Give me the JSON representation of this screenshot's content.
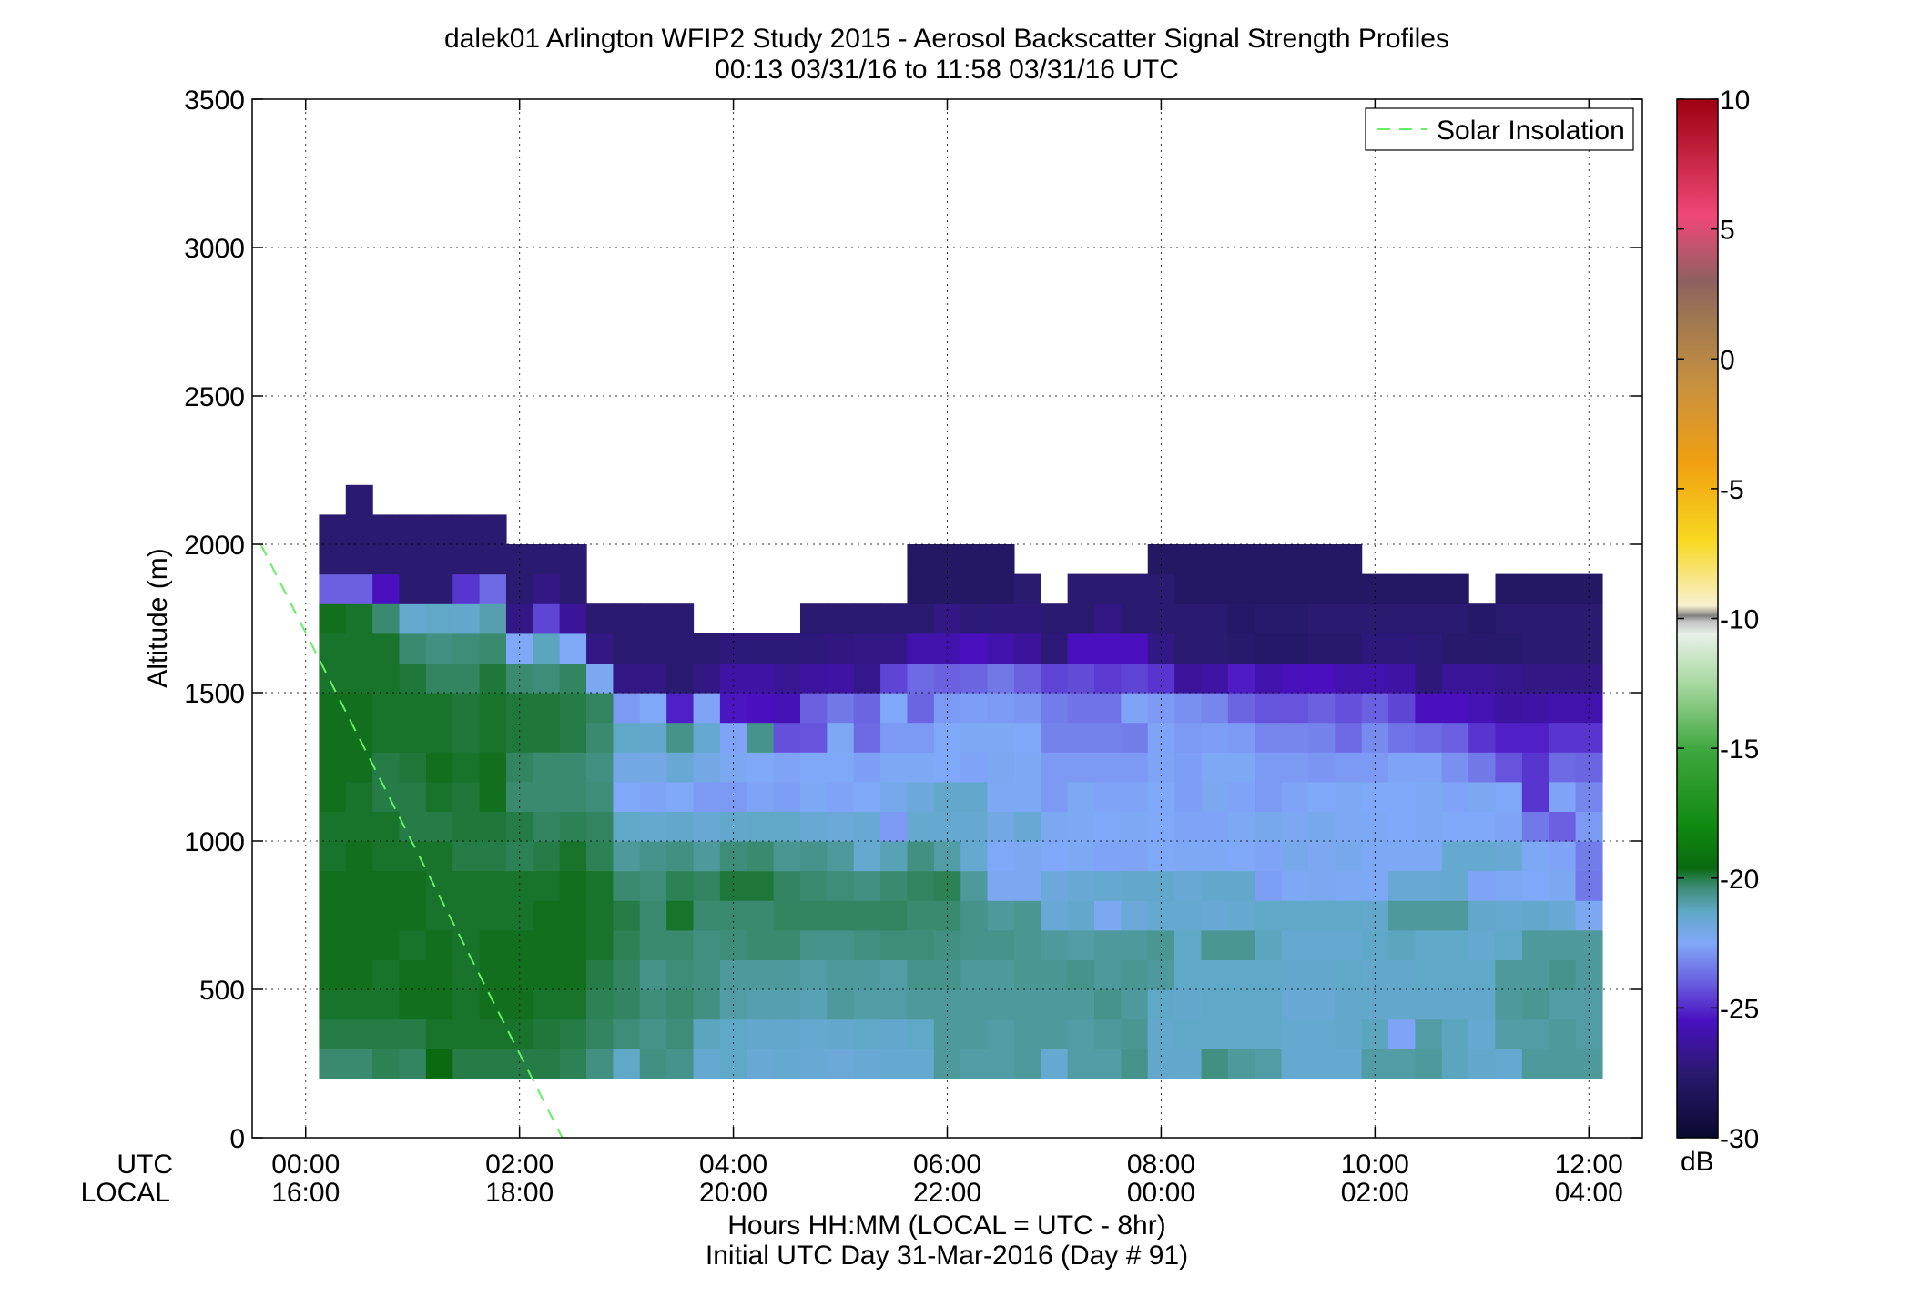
{
  "chart_data": {
    "type": "heatmap",
    "title": "dalek01 Arlington WFIP2 Study 2015 - Aerosol Backscatter Signal Strength Profiles",
    "subtitle": "00:13 03/31/16 to 11:58 03/31/16  UTC",
    "ylabel": "Altitude (m)",
    "xlabel": "Hours HH:MM  (LOCAL = UTC - 8hr)",
    "xlabel2": "Initial UTC Day 31-Mar-2016 (Day # 91)",
    "row_label_utc": "UTC",
    "row_label_local": "LOCAL",
    "xlim_hours": [
      -0.5,
      12.5
    ],
    "ylim": [
      0,
      3500
    ],
    "x_ticks": [
      {
        "value": 0,
        "utc": "00:00",
        "local": "16:00"
      },
      {
        "value": 2,
        "utc": "02:00",
        "local": "18:00"
      },
      {
        "value": 4,
        "utc": "04:00",
        "local": "20:00"
      },
      {
        "value": 6,
        "utc": "06:00",
        "local": "22:00"
      },
      {
        "value": 8,
        "utc": "08:00",
        "local": "00:00"
      },
      {
        "value": 10,
        "utc": "10:00",
        "local": "02:00"
      },
      {
        "value": 12,
        "utc": "12:00",
        "local": "04:00"
      }
    ],
    "y_ticks": [
      0,
      500,
      1000,
      1500,
      2000,
      2500,
      3000,
      3500
    ],
    "grid": true,
    "legend": {
      "position": "top-right",
      "entries": [
        "Solar Insolation"
      ]
    },
    "solar_insolation_line": {
      "x": [
        -0.42,
        2.4
      ],
      "y": [
        2000,
        0
      ],
      "color": "#66ee66"
    },
    "colorbar": {
      "label": "dB",
      "ticks": [
        10,
        5,
        0,
        -5,
        -10,
        -15,
        -20,
        -25,
        -30
      ],
      "range": [
        -30,
        10
      ],
      "colors": [
        {
          "v": -30,
          "c": "#0a0a30"
        },
        {
          "v": -27.5,
          "c": "#2a1a70"
        },
        {
          "v": -25.5,
          "c": "#4a10c0"
        },
        {
          "v": -24,
          "c": "#6a60e0"
        },
        {
          "v": -22.5,
          "c": "#80a8f8"
        },
        {
          "v": -21.3,
          "c": "#60a8c8"
        },
        {
          "v": -20.3,
          "c": "#3a8a70"
        },
        {
          "v": -19.6,
          "c": "#0a6a10"
        },
        {
          "v": -18,
          "c": "#108a10"
        },
        {
          "v": -15,
          "c": "#40a840"
        },
        {
          "v": -12.5,
          "c": "#a8d8a0"
        },
        {
          "v": -10.6,
          "c": "#e8f0e8"
        },
        {
          "v": -10.1,
          "c": "#c0c0c0"
        },
        {
          "v": -9.9,
          "c": "#808080"
        },
        {
          "v": -9.5,
          "c": "#f8f0d0"
        },
        {
          "v": -7,
          "c": "#f8d820"
        },
        {
          "v": -4,
          "c": "#f0a010"
        },
        {
          "v": -1,
          "c": "#c89040"
        },
        {
          "v": 1.5,
          "c": "#a07850"
        },
        {
          "v": 3,
          "c": "#906060"
        },
        {
          "v": 5.5,
          "c": "#f04878"
        },
        {
          "v": 10,
          "c": "#a00010"
        }
      ]
    },
    "time_bins_hours": [
      0.25,
      0.5,
      0.75,
      1.0,
      1.25,
      1.5,
      1.75,
      2.0,
      2.25,
      2.5,
      2.75,
      3.0,
      3.25,
      3.5,
      3.75,
      4.0,
      4.25,
      4.5,
      4.75,
      5.0,
      5.25,
      5.5,
      5.75,
      6.0,
      6.25,
      6.5,
      6.75,
      7.0,
      7.25,
      7.5,
      7.75,
      8.0,
      8.25,
      8.5,
      8.75,
      9.0,
      9.25,
      9.5,
      9.75,
      10.0,
      10.25,
      10.5,
      10.75,
      11.0,
      11.25,
      11.5,
      11.75,
      12.0
    ],
    "altitude_bins_m": [
      200,
      300,
      400,
      500,
      600,
      700,
      800,
      900,
      1000,
      1100,
      1200,
      1300,
      1400,
      1500,
      1600,
      1700,
      1800,
      1900,
      2000,
      2100
    ],
    "columns_db": [
      [
        -20.3,
        -20.0,
        -19.8,
        -19.7,
        -19.7,
        -19.7,
        -19.7,
        -19.8,
        -19.8,
        -19.7,
        -19.7,
        -19.7,
        -19.7,
        -19.8,
        -19.8,
        -19.7,
        -24.0,
        -27.5,
        -27.5
      ],
      [
        -20.3,
        -20.0,
        -19.8,
        -19.7,
        -19.7,
        -19.7,
        -19.7,
        -19.7,
        -19.8,
        -19.8,
        -19.7,
        -19.7,
        -19.7,
        -19.8,
        -19.8,
        -19.8,
        -24.0,
        -27.5,
        -27.5,
        -27.5
      ],
      [
        -20.1,
        -20.0,
        -19.8,
        -19.8,
        -19.7,
        -19.7,
        -19.7,
        -19.8,
        -19.8,
        -20.0,
        -20.0,
        -19.8,
        -19.8,
        -19.8,
        -19.8,
        -20.3,
        -25.5,
        -27.5,
        -27.5
      ],
      [
        -20.2,
        -20.0,
        -19.7,
        -19.7,
        -19.8,
        -19.7,
        -19.7,
        -19.8,
        -20.0,
        -20.0,
        -19.9,
        -19.8,
        -19.8,
        -19.9,
        -20.3,
        -21.5,
        -27.5,
        -27.5,
        -27.5
      ],
      [
        -19.6,
        -19.8,
        -19.7,
        -19.7,
        -19.7,
        -19.8,
        -19.8,
        -19.8,
        -20.0,
        -19.8,
        -19.7,
        -19.8,
        -19.8,
        -20.2,
        -20.5,
        -21.3,
        -27.5,
        -27.5,
        -27.5
      ],
      [
        -20.0,
        -19.8,
        -19.8,
        -19.8,
        -19.8,
        -19.8,
        -19.8,
        -20.0,
        -19.9,
        -19.9,
        -19.8,
        -19.9,
        -19.9,
        -20.2,
        -20.4,
        -21.4,
        -24.8,
        -27.5,
        -27.5
      ],
      [
        -20.0,
        -19.8,
        -19.7,
        -19.7,
        -19.7,
        -19.8,
        -19.8,
        -20.0,
        -19.9,
        -19.7,
        -19.7,
        -19.8,
        -19.8,
        -19.9,
        -20.3,
        -21.0,
        -23.8,
        -27.5,
        -27.5
      ],
      [
        -20.0,
        -19.8,
        -19.7,
        -19.7,
        -19.7,
        -19.8,
        -19.8,
        -20.1,
        -20.0,
        -20.3,
        -20.2,
        -19.9,
        -19.9,
        -20.3,
        -22.5,
        -27.0,
        -27.5,
        -27.5
      ],
      [
        -20.0,
        -19.9,
        -19.8,
        -19.7,
        -19.7,
        -19.7,
        -19.8,
        -20.0,
        -20.2,
        -20.3,
        -20.3,
        -19.9,
        -19.9,
        -20.4,
        -21.2,
        -24.5,
        -27.0,
        -27.5
      ],
      [
        -20.1,
        -20.0,
        -19.8,
        -19.7,
        -19.7,
        -19.7,
        -19.7,
        -19.8,
        -20.1,
        -20.3,
        -20.3,
        -20.0,
        -20.0,
        -20.2,
        -22.5,
        -26.5,
        -27.5,
        -27.5
      ],
      [
        -20.5,
        -20.2,
        -20.1,
        -20.0,
        -19.8,
        -19.8,
        -19.8,
        -20.1,
        -20.2,
        -20.4,
        -20.5,
        -20.3,
        -20.2,
        -22.3,
        -27.0,
        -27.5
      ],
      [
        -21.3,
        -20.4,
        -20.2,
        -20.2,
        -20.1,
        -20.0,
        -20.3,
        -20.8,
        -21.3,
        -22.5,
        -22.0,
        -21.3,
        -22.8,
        -27.0,
        -27.5,
        -27.5
      ],
      [
        -20.5,
        -20.6,
        -20.4,
        -20.6,
        -20.3,
        -20.3,
        -20.4,
        -20.6,
        -21.5,
        -22.6,
        -22.0,
        -21.4,
        -22.5,
        -27.0,
        -27.5,
        -27.5
      ],
      [
        -20.6,
        -20.4,
        -20.3,
        -20.4,
        -20.3,
        -19.8,
        -20.1,
        -20.5,
        -21.4,
        -22.5,
        -21.6,
        -20.6,
        -25.2,
        -27.5,
        -27.5,
        -27.5
      ],
      [
        -21.5,
        -21.2,
        -20.5,
        -20.5,
        -20.5,
        -20.3,
        -20.2,
        -20.8,
        -21.6,
        -22.8,
        -22.0,
        -21.5,
        -22.6,
        -27.0,
        -27.5
      ],
      [
        -21.3,
        -21.3,
        -20.9,
        -20.8,
        -20.4,
        -20.3,
        -19.9,
        -20.4,
        -21.4,
        -22.8,
        -22.3,
        -22.6,
        -25.4,
        -26.2,
        -27.2
      ],
      [
        -21.6,
        -21.4,
        -21.0,
        -20.8,
        -20.3,
        -20.3,
        -19.9,
        -20.3,
        -21.3,
        -22.6,
        -22.5,
        -20.6,
        -25.5,
        -26.2,
        -27.3
      ],
      [
        -21.5,
        -21.4,
        -21.0,
        -20.8,
        -20.3,
        -20.2,
        -20.2,
        -20.7,
        -21.3,
        -22.7,
        -22.6,
        -24.3,
        -25.7,
        -26.6,
        -27.3
      ],
      [
        -21.6,
        -21.5,
        -21.1,
        -20.9,
        -20.6,
        -20.2,
        -20.3,
        -20.6,
        -21.6,
        -22.4,
        -22.5,
        -24.2,
        -24.0,
        -26.3,
        -27.2,
        -27.5
      ],
      [
        -21.7,
        -21.4,
        -20.8,
        -20.8,
        -20.6,
        -20.2,
        -20.4,
        -20.8,
        -21.7,
        -22.6,
        -22.5,
        -22.4,
        -23.5,
        -26.2,
        -27.1,
        -27.5
      ],
      [
        -21.6,
        -21.3,
        -20.9,
        -20.8,
        -20.5,
        -20.2,
        -20.5,
        -21.5,
        -21.6,
        -22.5,
        -22.7,
        -23.8,
        -23.9,
        -26.8,
        -27.0,
        -27.5
      ],
      [
        -21.5,
        -21.4,
        -20.9,
        -20.9,
        -20.4,
        -20.2,
        -20.3,
        -21.1,
        -22.8,
        -22.1,
        -22.4,
        -22.8,
        -22.5,
        -24.5,
        -27.0,
        -27.5
      ],
      [
        -21.5,
        -21.3,
        -20.8,
        -20.6,
        -20.4,
        -20.3,
        -20.2,
        -20.5,
        -21.5,
        -21.8,
        -22.4,
        -22.8,
        -23.9,
        -23.8,
        -26.0,
        -27.5,
        -28.0,
        -28.0
      ],
      [
        -20.8,
        -20.8,
        -20.8,
        -20.6,
        -20.5,
        -20.3,
        -20.1,
        -20.9,
        -21.5,
        -21.4,
        -22.5,
        -22.5,
        -22.8,
        -24.0,
        -26.0,
        -27.0,
        -28.0,
        -28.0
      ],
      [
        -20.9,
        -20.8,
        -20.8,
        -20.8,
        -20.6,
        -20.6,
        -20.8,
        -21.5,
        -21.5,
        -21.4,
        -22.6,
        -22.4,
        -22.7,
        -23.9,
        -25.5,
        -27.3,
        -28.0,
        -28.0
      ],
      [
        -20.9,
        -20.9,
        -20.8,
        -20.8,
        -20.6,
        -20.8,
        -22.3,
        -22.5,
        -22.0,
        -22.4,
        -22.3,
        -22.4,
        -22.8,
        -23.5,
        -26.0,
        -27.2,
        -28.0,
        -28.0
      ],
      [
        -20.8,
        -20.8,
        -20.8,
        -20.7,
        -20.7,
        -20.7,
        -22.3,
        -22.3,
        -21.6,
        -22.4,
        -22.4,
        -22.5,
        -22.9,
        -24.0,
        -26.4,
        -27.2,
        -27.5
      ],
      [
        -21.5,
        -20.8,
        -20.8,
        -20.7,
        -20.8,
        -21.6,
        -21.8,
        -22.5,
        -22.3,
        -22.8,
        -22.8,
        -23.3,
        -23.4,
        -24.5,
        -27.3,
        -27.5
      ],
      [
        -20.9,
        -20.9,
        -20.8,
        -20.6,
        -20.9,
        -21.4,
        -21.6,
        -22.4,
        -22.4,
        -22.4,
        -22.8,
        -23.3,
        -23.6,
        -24.4,
        -25.5,
        -27.5,
        -27.5
      ],
      [
        -20.9,
        -20.8,
        -20.6,
        -20.8,
        -20.8,
        -22.3,
        -21.5,
        -22.6,
        -22.5,
        -22.6,
        -22.8,
        -23.3,
        -23.6,
        -24.7,
        -25.5,
        -27.0,
        -27.5
      ],
      [
        -20.6,
        -20.7,
        -20.8,
        -20.7,
        -20.8,
        -21.7,
        -21.4,
        -22.6,
        -22.4,
        -22.6,
        -22.8,
        -23.4,
        -22.6,
        -24.5,
        -25.5,
        -27.5,
        -27.5
      ],
      [
        -21.4,
        -21.4,
        -21.3,
        -20.8,
        -20.7,
        -21.5,
        -21.4,
        -22.5,
        -22.5,
        -22.5,
        -22.6,
        -22.6,
        -22.8,
        -24.8,
        -27.0,
        -27.5,
        -27.5,
        -28.0
      ],
      [
        -21.4,
        -21.3,
        -21.4,
        -21.3,
        -21.3,
        -21.5,
        -21.6,
        -22.4,
        -22.6,
        -22.7,
        -22.7,
        -22.8,
        -23.0,
        -26.4,
        -27.5,
        -27.5,
        -28.0,
        -28.0
      ],
      [
        -20.5,
        -21.3,
        -21.3,
        -21.3,
        -20.7,
        -21.6,
        -21.4,
        -22.4,
        -22.6,
        -22.3,
        -22.4,
        -22.7,
        -23.2,
        -26.2,
        -27.5,
        -27.5,
        -28.0,
        -28.0
      ],
      [
        -20.8,
        -21.3,
        -21.3,
        -21.3,
        -20.7,
        -21.5,
        -21.4,
        -22.5,
        -22.4,
        -22.6,
        -22.4,
        -22.8,
        -23.9,
        -25.3,
        -27.7,
        -27.8,
        -28.0,
        -28.0
      ],
      [
        -20.9,
        -21.3,
        -21.3,
        -21.3,
        -21.2,
        -21.3,
        -22.7,
        -22.6,
        -22.2,
        -22.8,
        -22.8,
        -23.2,
        -24.2,
        -26.0,
        -27.8,
        -27.7,
        -28.0,
        -28.0
      ],
      [
        -21.5,
        -21.5,
        -21.6,
        -21.4,
        -21.5,
        -21.3,
        -22.4,
        -22.2,
        -22.3,
        -22.6,
        -22.8,
        -23.2,
        -24.2,
        -25.6,
        -27.8,
        -27.7,
        -28.0,
        -28.0
      ],
      [
        -21.5,
        -21.5,
        -21.6,
        -21.4,
        -21.5,
        -21.3,
        -22.3,
        -22.3,
        -22.2,
        -22.5,
        -22.9,
        -23.3,
        -24.0,
        -25.5,
        -27.6,
        -27.5,
        -28.0,
        -28.0
      ],
      [
        -21.5,
        -21.4,
        -21.4,
        -21.3,
        -21.5,
        -21.3,
        -22.4,
        -22.2,
        -22.4,
        -22.4,
        -22.8,
        -23.8,
        -24.3,
        -26.0,
        -27.6,
        -27.5,
        -28.0,
        -28.0
      ],
      [
        -20.9,
        -21.2,
        -21.4,
        -21.4,
        -21.3,
        -21.4,
        -22.4,
        -22.4,
        -22.4,
        -22.5,
        -22.8,
        -23.1,
        -24.0,
        -26.0,
        -27.2,
        -27.5,
        -28.0
      ],
      [
        -20.9,
        -22.6,
        -21.4,
        -21.4,
        -21.2,
        -20.8,
        -21.6,
        -22.4,
        -22.5,
        -22.5,
        -22.6,
        -23.6,
        -24.5,
        -26.2,
        -27.2,
        -27.5,
        -28.0
      ],
      [
        -20.8,
        -20.9,
        -21.4,
        -21.3,
        -21.3,
        -20.8,
        -21.6,
        -22.4,
        -22.4,
        -22.4,
        -22.6,
        -23.8,
        -25.5,
        -27.2,
        -27.3,
        -27.5,
        -28.0
      ],
      [
        -21.2,
        -21.2,
        -21.4,
        -21.3,
        -21.3,
        -20.8,
        -21.5,
        -21.5,
        -22.5,
        -22.6,
        -23.0,
        -24.0,
        -25.5,
        -26.5,
        -27.6,
        -27.5,
        -28.0
      ],
      [
        -21.4,
        -21.5,
        -21.4,
        -21.3,
        -21.5,
        -21.4,
        -22.6,
        -21.5,
        -22.5,
        -22.3,
        -23.5,
        -24.8,
        -25.8,
        -26.5,
        -27.6,
        -27.8
      ],
      [
        -21.5,
        -20.9,
        -20.8,
        -20.8,
        -21.3,
        -21.5,
        -22.4,
        -21.6,
        -22.6,
        -22.5,
        -24.2,
        -25.2,
        -26.3,
        -26.8,
        -27.7,
        -27.5,
        -28.0
      ],
      [
        -20.8,
        -20.9,
        -20.7,
        -20.8,
        -20.8,
        -21.4,
        -22.5,
        -22.4,
        -23.5,
        -24.8,
        -24.8,
        -25.2,
        -26.2,
        -27.0,
        -27.5,
        -27.5,
        -28.0
      ],
      [
        -20.8,
        -20.8,
        -20.9,
        -20.6,
        -20.8,
        -21.6,
        -22.3,
        -22.6,
        -24.0,
        -22.6,
        -23.8,
        -24.8,
        -26.0,
        -27.0,
        -27.5,
        -27.5,
        -28.0
      ],
      [
        -20.8,
        -20.9,
        -20.9,
        -20.8,
        -20.8,
        -22.3,
        -23.5,
        -23.4,
        -22.8,
        -23.2,
        -23.9,
        -24.8,
        -26.0,
        -27.0,
        -27.5,
        -27.5,
        -28.0
      ]
    ]
  }
}
